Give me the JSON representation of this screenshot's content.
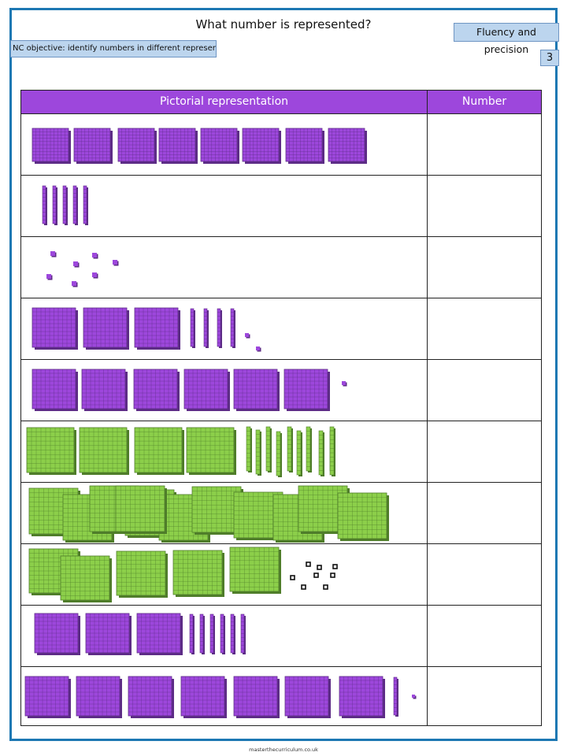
{
  "page": {
    "title": "What number is represented?",
    "objective": "NC objective: identify numbers in different representations",
    "category": "Fluency and precision",
    "page_number": "3",
    "footer": "masterthecurriculum.co.uk"
  },
  "table": {
    "col_pictorial": "Pictorial representation",
    "col_number": "Number"
  },
  "colors": {
    "purple": "#9d47dc",
    "green": "#8ccf4a",
    "border_blue": "#1d78b3",
    "box_blue": "#bcd5ee"
  },
  "rows": [
    {
      "color": "purple",
      "hundreds": 8,
      "tens": 0,
      "ones": 0
    },
    {
      "color": "purple",
      "hundreds": 0,
      "tens": 5,
      "ones": 0
    },
    {
      "color": "purple",
      "hundreds": 0,
      "tens": 0,
      "ones": 7
    },
    {
      "color": "purple",
      "hundreds": 3,
      "tens": 4,
      "ones": 2
    },
    {
      "color": "purple",
      "hundreds": 6,
      "tens": 0,
      "ones": 1
    },
    {
      "color": "green",
      "hundreds": 4,
      "tens": 10,
      "ones": 0
    },
    {
      "color": "green",
      "hundreds": 11,
      "tens": 0,
      "ones": 0
    },
    {
      "color": "mixed",
      "hundreds": 5,
      "tens": 0,
      "ones": 8
    },
    {
      "color": "purple",
      "hundreds": 3,
      "tens": 6,
      "ones": 0
    },
    {
      "color": "purple",
      "hundreds": 7,
      "tens": 1,
      "ones": 1
    }
  ]
}
